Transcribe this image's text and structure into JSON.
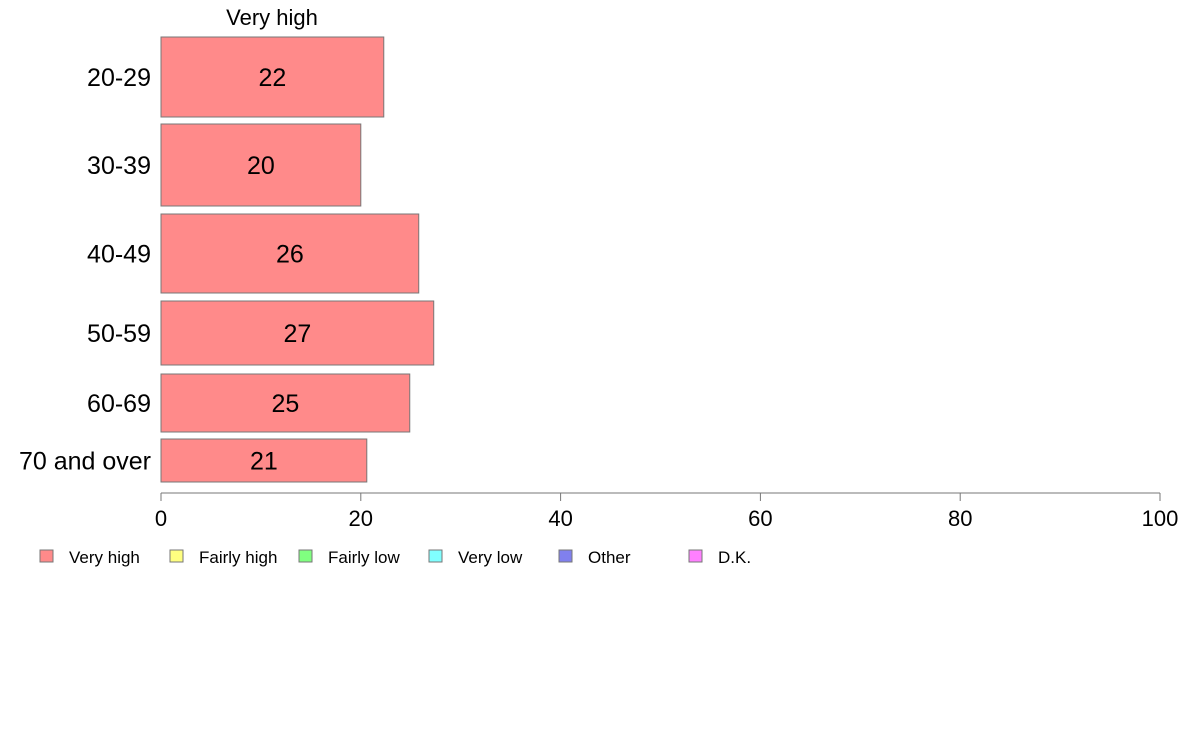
{
  "chart_data": {
    "type": "bar",
    "orientation": "horizontal",
    "title": "Very high",
    "categories": [
      "20-29",
      "30-39",
      "40-49",
      "50-59",
      "60-69",
      "70 and over"
    ],
    "series": [
      {
        "name": "Very high",
        "color": "#ff8a8a",
        "values": [
          22.3,
          20,
          25.8,
          27.3,
          24.9,
          20.6
        ],
        "labels": [
          "22",
          "20",
          "26",
          "27",
          "25",
          "21"
        ]
      }
    ],
    "xlim": [
      0,
      100
    ],
    "xticks": [
      0,
      20,
      40,
      60,
      80,
      100
    ],
    "grid": false,
    "legend": {
      "placement": "bottom",
      "entries": [
        {
          "label": "Very high",
          "color": "#ff8a8a"
        },
        {
          "label": "Fairly high",
          "color": "#ffff80"
        },
        {
          "label": "Fairly low",
          "color": "#80ff80"
        },
        {
          "label": "Very low",
          "color": "#80ffff"
        },
        {
          "label": "Other",
          "color": "#8080ee"
        },
        {
          "label": "D.K.",
          "color": "#ff80ff"
        }
      ]
    }
  }
}
